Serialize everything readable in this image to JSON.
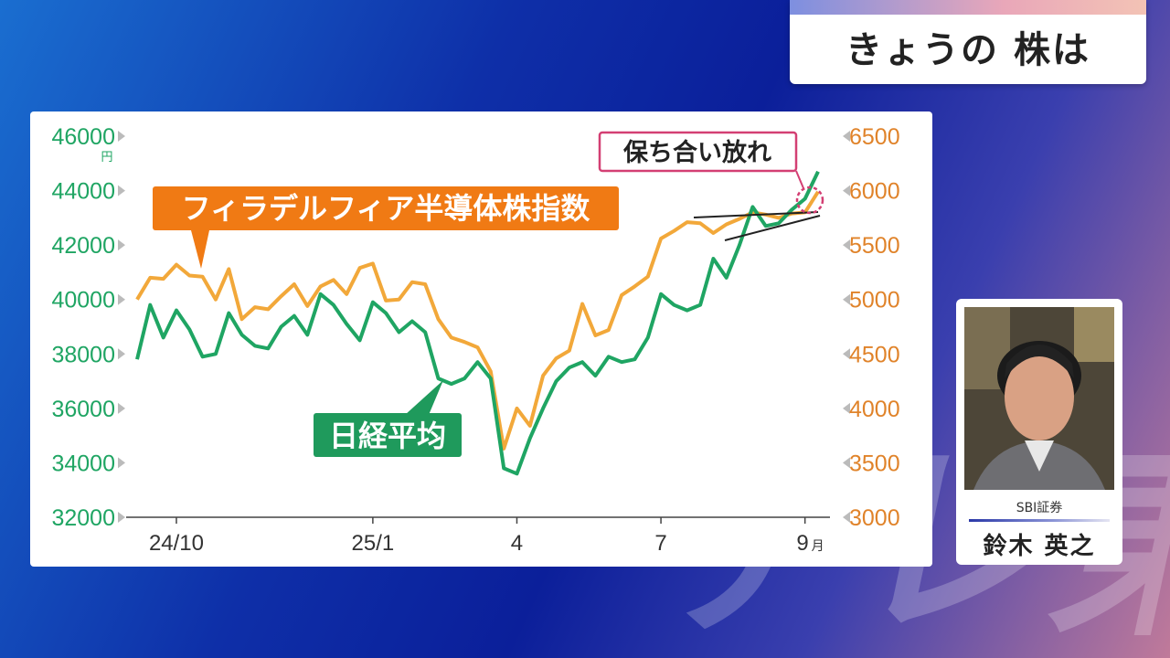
{
  "header": {
    "title": "きょうの 株は"
  },
  "watermark": {
    "text": "テレ東"
  },
  "person": {
    "company": "SBI証券",
    "name": "鈴木 英之"
  },
  "colors": {
    "left_series": "#1fa563",
    "right_series": "#f2a83a",
    "label_orange": "#f07a14",
    "annotation": "#d33f73"
  },
  "chart_data": {
    "type": "line",
    "x_ticks": [
      "24/10",
      "25/1",
      "4",
      "7",
      "9"
    ],
    "x_unit": "月",
    "left_axis": {
      "ticks": [
        32000,
        34000,
        36000,
        38000,
        40000,
        42000,
        44000,
        46000
      ],
      "unit": "円",
      "range": [
        32000,
        46000
      ]
    },
    "right_axis": {
      "ticks": [
        3000,
        3500,
        4000,
        4500,
        5000,
        5500,
        6000,
        6500
      ],
      "range": [
        3000,
        6500
      ]
    },
    "series": [
      {
        "name": "日経平均",
        "axis": "left",
        "values": [
          37800,
          39800,
          38600,
          39600,
          38900,
          37900,
          38000,
          39500,
          38700,
          38300,
          38200,
          39000,
          39400,
          38700,
          40200,
          39800,
          39100,
          38500,
          39900,
          39500,
          38800,
          39200,
          38800,
          37100,
          36900,
          37100,
          37700,
          37100,
          33800,
          33600,
          34900,
          36000,
          37000,
          37500,
          37700,
          37200,
          37900,
          37700,
          37800,
          38600,
          40200,
          39800,
          39600,
          39800,
          41500,
          40800,
          42000,
          43400,
          42700,
          42800,
          43300,
          43700,
          44700
        ],
        "labels_x_index": {
          "24/10": 3,
          "25/1": 18,
          "4": 29,
          "7": 40,
          "9": 51
        }
      },
      {
        "name": "フィラデルフィア半導体株指数",
        "axis": "right",
        "values": [
          5000,
          5200,
          5190,
          5320,
          5220,
          5210,
          5000,
          5280,
          4820,
          4930,
          4910,
          5030,
          5140,
          4940,
          5120,
          5180,
          5050,
          5290,
          5330,
          4990,
          5000,
          5160,
          5140,
          4820,
          4650,
          4610,
          4560,
          4340,
          3630,
          4000,
          3840,
          4300,
          4460,
          4530,
          4960,
          4670,
          4720,
          5040,
          5120,
          5210,
          5560,
          5630,
          5710,
          5700,
          5610,
          5690,
          5740,
          5800,
          5780,
          5750,
          5790,
          5800,
          5990
        ]
      }
    ],
    "annotations": {
      "series_label_right": "フィラデルフィア半導体株指数",
      "series_label_left": "日経平均",
      "callout": "保ち合い放れ"
    }
  }
}
